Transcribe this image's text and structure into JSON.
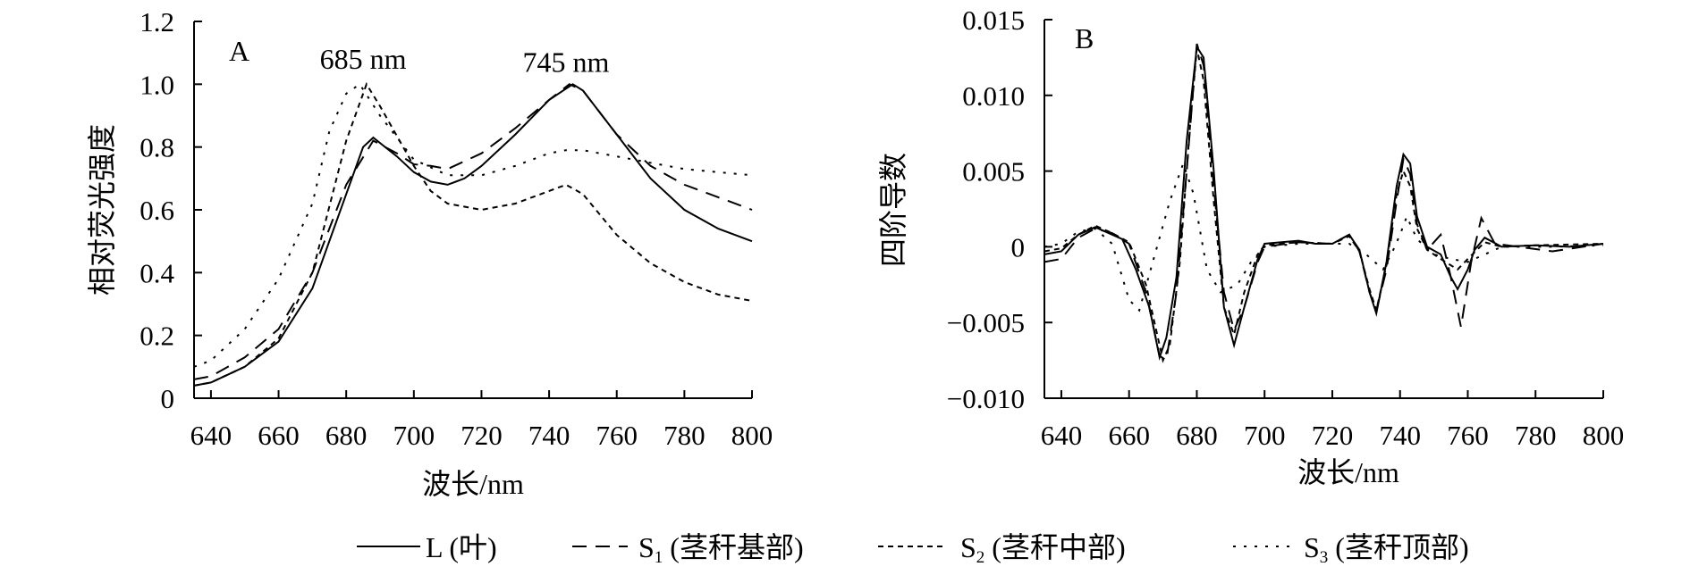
{
  "legend": [
    {
      "symbol": "L",
      "sub": "",
      "desc": " (叶)",
      "dash": ""
    },
    {
      "symbol": "S",
      "sub": "1",
      "desc": " (茎秆基部)",
      "dash": "16,10"
    },
    {
      "symbol": "S",
      "sub": "2",
      "desc": " (茎秆中部)",
      "dash": "6,5"
    },
    {
      "symbol": "S",
      "sub": "3",
      "desc": " (茎秆顶部)",
      "dash": "3,9"
    }
  ],
  "chart_data": [
    {
      "type": "line",
      "panel_label": "A",
      "xlabel": "波长/nm",
      "ylabel": "相对荧光强度",
      "xlim": [
        635,
        800
      ],
      "ylim": [
        0,
        1.2
      ],
      "xticks": [
        640,
        660,
        680,
        700,
        720,
        740,
        760,
        780,
        800
      ],
      "yticks": [
        0,
        0.2,
        0.4,
        0.6,
        0.8,
        1.0,
        1.2
      ],
      "ytick_labels": [
        "0",
        "0.2",
        "0.4",
        "0.6",
        "0.8",
        "1.0",
        "1.2"
      ],
      "annotations": [
        {
          "text": "685 nm",
          "x": 685,
          "y": 1.05
        },
        {
          "text": "745 nm",
          "x": 745,
          "y": 1.04
        }
      ],
      "grid": false,
      "legend_position": "bottom",
      "series": [
        {
          "name": "L (叶)",
          "x": [
            635,
            640,
            650,
            660,
            670,
            680,
            685,
            688,
            695,
            700,
            705,
            710,
            715,
            720,
            730,
            740,
            747,
            750,
            760,
            770,
            780,
            790,
            800
          ],
          "y": [
            0.04,
            0.05,
            0.1,
            0.18,
            0.35,
            0.65,
            0.8,
            0.83,
            0.77,
            0.72,
            0.69,
            0.68,
            0.7,
            0.74,
            0.84,
            0.95,
            1.0,
            0.98,
            0.84,
            0.7,
            0.6,
            0.54,
            0.5
          ]
        },
        {
          "name": "S1 (茎秆基部)",
          "x": [
            635,
            640,
            650,
            660,
            670,
            680,
            688,
            695,
            700,
            705,
            710,
            720,
            730,
            740,
            746,
            750,
            760,
            770,
            780,
            790,
            800
          ],
          "y": [
            0.06,
            0.07,
            0.13,
            0.22,
            0.4,
            0.68,
            0.82,
            0.78,
            0.745,
            0.74,
            0.73,
            0.78,
            0.86,
            0.95,
            1.0,
            0.98,
            0.84,
            0.74,
            0.68,
            0.64,
            0.6
          ]
        },
        {
          "name": "S2 (茎秆中部)",
          "x": [
            635,
            640,
            650,
            660,
            670,
            680,
            686,
            690,
            700,
            705,
            710,
            720,
            730,
            740,
            745,
            750,
            760,
            770,
            780,
            790,
            800
          ],
          "y": [
            0.04,
            0.05,
            0.1,
            0.19,
            0.4,
            0.82,
            1.0,
            0.93,
            0.74,
            0.66,
            0.62,
            0.6,
            0.62,
            0.66,
            0.68,
            0.65,
            0.52,
            0.43,
            0.37,
            0.33,
            0.31
          ]
        },
        {
          "name": "S3 (茎秆顶部)",
          "x": [
            635,
            640,
            650,
            660,
            670,
            675,
            680,
            684,
            690,
            700,
            710,
            720,
            730,
            740,
            745,
            750,
            760,
            770,
            780,
            790,
            800
          ],
          "y": [
            0.1,
            0.12,
            0.22,
            0.38,
            0.62,
            0.85,
            0.97,
            1.0,
            0.9,
            0.76,
            0.71,
            0.71,
            0.74,
            0.78,
            0.79,
            0.79,
            0.77,
            0.75,
            0.73,
            0.72,
            0.71
          ]
        }
      ]
    },
    {
      "type": "line",
      "panel_label": "B",
      "xlabel": "波长/nm",
      "ylabel": "四阶导数",
      "xlim": [
        635,
        800
      ],
      "ylim": [
        -0.01,
        0.015
      ],
      "xticks": [
        640,
        660,
        680,
        700,
        720,
        740,
        760,
        780,
        800
      ],
      "yticks": [
        -0.01,
        -0.005,
        0,
        0.005,
        0.01,
        0.015
      ],
      "ytick_labels": [
        "−0.010",
        "−0.005",
        "0",
        "0.005",
        "0.010",
        "0.015"
      ],
      "grid": false,
      "legend_position": "bottom",
      "series": [
        {
          "name": "L (叶)",
          "x": [
            635,
            640,
            645,
            650,
            655,
            658,
            662,
            666,
            669,
            671,
            674,
            677,
            680,
            682,
            685,
            688,
            691,
            694,
            698,
            700,
            705,
            710,
            715,
            720,
            725,
            728,
            731,
            733,
            736,
            739,
            741,
            743,
            745,
            748,
            752,
            755,
            757,
            760,
            762,
            765,
            770,
            780,
            790,
            800
          ],
          "y": [
            -0.0005,
            -0.0003,
            0.0008,
            0.0013,
            0.0008,
            0.0005,
            -0.0015,
            -0.004,
            -0.0073,
            -0.006,
            -0.002,
            0.007,
            0.0132,
            0.0125,
            0.005,
            -0.004,
            -0.0065,
            -0.004,
            -0.0008,
            0.0002,
            0.0003,
            0.0004,
            0.0002,
            0.0002,
            0.0008,
            -0.0002,
            -0.003,
            -0.0044,
            -0.001,
            0.004,
            0.0061,
            0.0055,
            0.002,
            0,
            -0.0005,
            -0.002,
            -0.0028,
            -0.0015,
            -0.0002,
            0.0006,
            0,
            0.0001,
            0,
            0.0002
          ]
        },
        {
          "name": "S1 (茎秆基部)",
          "x": [
            635,
            640,
            645,
            650,
            655,
            660,
            665,
            669,
            671,
            674,
            677,
            680,
            682,
            685,
            688,
            691,
            694,
            698,
            700,
            710,
            720,
            725,
            728,
            731,
            733,
            736,
            739,
            741,
            743,
            745,
            748,
            752,
            755,
            758,
            761,
            764,
            768,
            775,
            785,
            800
          ],
          "y": [
            -0.001,
            -0.0008,
            0.0006,
            0.0012,
            0.0009,
            0.0002,
            -0.003,
            -0.0072,
            -0.0075,
            -0.003,
            0.005,
            0.0134,
            0.012,
            0.004,
            -0.003,
            -0.0055,
            -0.004,
            -0.001,
            0,
            0.0003,
            0.0002,
            0.0008,
            -0.0003,
            -0.003,
            -0.0042,
            -0.0015,
            0.003,
            0.0058,
            0.0048,
            0.0015,
            -0.0002,
            0.0008,
            -0.002,
            -0.0053,
            -0.001,
            0.0019,
            0.0002,
            0,
            -0.0003,
            0.0002
          ]
        },
        {
          "name": "S2 (茎秆中部)",
          "x": [
            635,
            640,
            645,
            650,
            655,
            660,
            665,
            670,
            672,
            675,
            678,
            680,
            682,
            685,
            688,
            691,
            694,
            698,
            700,
            710,
            720,
            725,
            728,
            731,
            733,
            736,
            739,
            741,
            743,
            745,
            748,
            752,
            757,
            760,
            765,
            770,
            780,
            800
          ],
          "y": [
            -0.0003,
            -0.0001,
            0.0008,
            0.0014,
            0.0009,
            0.0003,
            -0.0025,
            -0.0075,
            -0.0065,
            -0.001,
            0.008,
            0.0131,
            0.011,
            0.003,
            -0.004,
            -0.0058,
            -0.003,
            -0.0005,
            0.0001,
            0.0003,
            0.0002,
            0.0007,
            -0.0003,
            -0.0028,
            -0.0042,
            -0.0012,
            0.0035,
            0.005,
            0.004,
            0.0012,
            -0.0002,
            -0.0008,
            -0.0015,
            -0.0008,
            0.0003,
            0,
            0.0001,
            0.0002
          ]
        },
        {
          "name": "S3 (茎秆顶部)",
          "x": [
            635,
            640,
            645,
            650,
            655,
            660,
            663,
            667,
            672,
            676,
            679,
            683,
            687,
            692,
            696,
            700,
            710,
            725,
            730,
            735,
            738,
            740,
            742,
            745,
            750,
            755,
            760,
            770,
            785,
            800
          ],
          "y": [
            0,
            0.0002,
            0.001,
            0.0012,
            0.0002,
            -0.0035,
            -0.0042,
            -0.001,
            0.003,
            0.0055,
            0.0035,
            -0.0015,
            -0.003,
            -0.0025,
            -0.001,
            0,
            0.0002,
            0.0002,
            -0.0005,
            -0.0015,
            -0.0002,
            0.0008,
            0.002,
            0.0005,
            -0.0005,
            -0.0008,
            -0.001,
            0,
            0,
            0.0001
          ]
        }
      ]
    }
  ]
}
